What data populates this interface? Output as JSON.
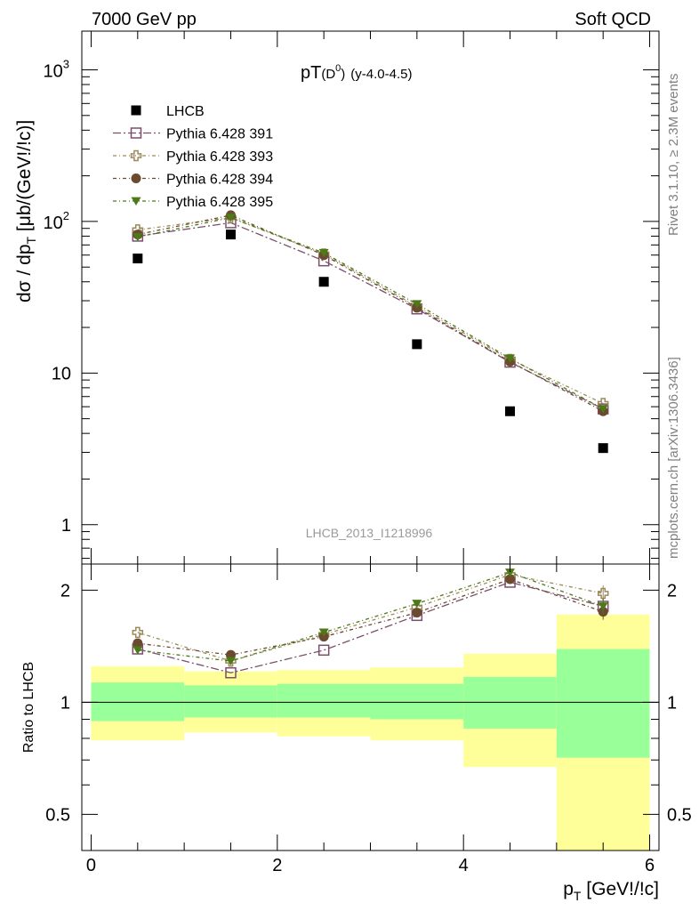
{
  "header": {
    "left": "7000 GeV pp",
    "right": "Soft QCD"
  },
  "side_labels": {
    "rivet": "Rivet 3.1.10, ≥ 2.3M events",
    "mcplots": "mcplots.cern.ch [arXiv:1306.3436]"
  },
  "chart_data": {
    "type": "scatter",
    "title": "pT(D⁰) (y-4.0-4.5)",
    "title_main": "pT",
    "title_paren": "(D",
    "title_sup": "0",
    "title_close": ")",
    "title_extra": "(y-4.0-4.5)",
    "analysis_label": "LHCB_2013_I1218996",
    "ylabel": "dσ / dp_T [μb/(GeV!/!c)]",
    "ylabel_main": "dσ / dp",
    "ylabel_sub": "T",
    "ylabel_unit": " [μb/(GeV!/!c)]",
    "xlabel": "p_T [GeV!/!c]",
    "xlabel_main": "p",
    "xlabel_sub": "T",
    "xlabel_unit": " [GeV!/!c]",
    "ratio_ylabel": "Ratio to LHCB",
    "yscale": "log",
    "ylim": [
      0.55,
      1800
    ],
    "xlim": [
      -0.1,
      6.1
    ],
    "ratio_ylim": [
      0.4,
      2.35
    ],
    "main_yticks": [
      {
        "value": 1000,
        "base": "10",
        "exp": "3"
      },
      {
        "value": 100,
        "base": "10",
        "exp": "2"
      },
      {
        "value": 10,
        "label": "10"
      },
      {
        "value": 1,
        "label": "1"
      }
    ],
    "xticks": [
      0,
      2,
      4,
      6
    ],
    "xtick_labels": [
      "0",
      "2",
      "4",
      "6"
    ],
    "ratio_yticks": [
      0.5,
      1,
      2
    ],
    "ratio_ytick_labels": [
      "0.5",
      "1",
      "2"
    ],
    "legend_position": "top-left",
    "bins": [
      [
        0,
        1
      ],
      [
        1,
        2
      ],
      [
        2,
        3
      ],
      [
        3,
        4
      ],
      [
        4,
        5
      ],
      [
        5,
        6
      ]
    ],
    "x": [
      0.5,
      1.5,
      2.5,
      3.5,
      4.5,
      5.5
    ],
    "data": {
      "name": "LHCB",
      "values": [
        57,
        82,
        40,
        15.5,
        5.6,
        3.2
      ]
    },
    "data_band_green": [
      [
        0.89,
        1.13
      ],
      [
        0.91,
        1.11
      ],
      [
        0.91,
        1.12
      ],
      [
        0.9,
        1.12
      ],
      [
        0.85,
        1.17
      ],
      [
        0.71,
        1.39
      ]
    ],
    "data_band_yellow": [
      [
        0.79,
        1.25
      ],
      [
        0.83,
        1.21
      ],
      [
        0.81,
        1.22
      ],
      [
        0.79,
        1.24
      ],
      [
        0.67,
        1.35
      ],
      [
        0.37,
        1.72
      ]
    ],
    "series": [
      {
        "name": "Pythia 6.428 391",
        "color": "#7b4f6b",
        "marker": "open-square",
        "values": [
          80,
          98,
          55,
          26.5,
          11.8,
          5.8
        ],
        "ratio": [
          1.39,
          1.2,
          1.38,
          1.71,
          2.1,
          1.81
        ]
      },
      {
        "name": "Pythia 6.428 393",
        "color": "#9a8a5a",
        "marker": "open-cross",
        "values": [
          88,
          106,
          61,
          27.5,
          12.3,
          6.3
        ],
        "ratio": [
          1.54,
          1.29,
          1.52,
          1.8,
          2.2,
          1.96
        ]
      },
      {
        "name": "Pythia 6.428 394",
        "color": "#6b4a2e",
        "marker": "filled-circle",
        "values": [
          82,
          110,
          60,
          27,
          11.9,
          5.6
        ],
        "ratio": [
          1.44,
          1.34,
          1.5,
          1.74,
          2.14,
          1.75
        ]
      },
      {
        "name": "Pythia 6.428 395",
        "color": "#4c7a16",
        "marker": "filled-triangle-down",
        "values": [
          79,
          106,
          62,
          28.5,
          12.5,
          5.8
        ],
        "ratio": [
          1.38,
          1.29,
          1.54,
          1.84,
          2.23,
          1.81
        ]
      }
    ]
  }
}
